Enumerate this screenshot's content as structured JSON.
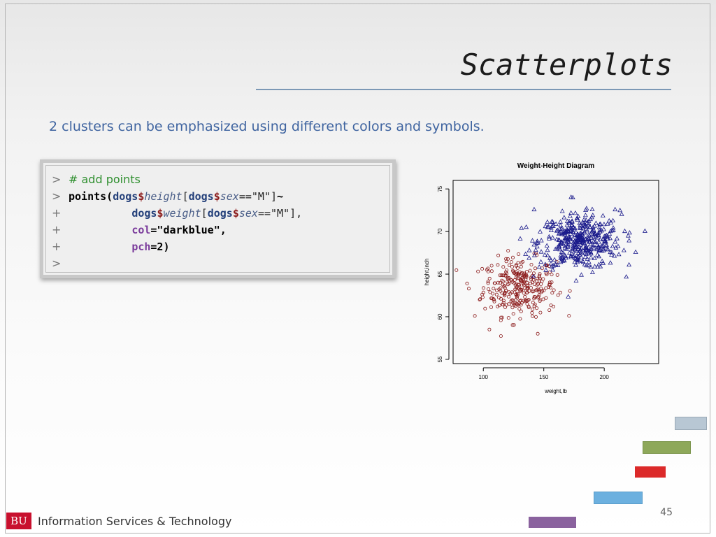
{
  "slide": {
    "title": "Scatterplots",
    "subtitle": "2 clusters can be emphasized using different colors and symbols.",
    "page_number": "45",
    "footer_logo": "BU",
    "footer_text": "Information Services & Technology"
  },
  "code": {
    "prompt_gt": ">",
    "prompt_plus": "+",
    "comment": "# add points",
    "line2": {
      "fn": "points(",
      "obj1": "dogs",
      "dollar": "$",
      "field1": "height",
      "b1": "[",
      "obj2": "dogs",
      "field2": "sex",
      "eq": "==\"M\"]",
      "tilde": "~"
    },
    "line3": {
      "obj1": "dogs",
      "dollar": "$",
      "field1": "weight",
      "b1": "[",
      "obj2": "dogs",
      "field2": "sex",
      "eq": "==\"M\"],"
    },
    "line4": {
      "arg": "col",
      "val": "=\"darkblue\","
    },
    "line5": {
      "arg": "pch",
      "val": "=2)"
    }
  },
  "colors": {
    "title_rule": "#7c98b5",
    "subtitle": "#3f64a0",
    "series_red": "#8b1a1a",
    "series_blue": "#1a1a8b",
    "deco": [
      "#b8c7d4",
      "#8ea85a",
      "#dc2a2a",
      "#6cb0df",
      "#8a629e"
    ]
  },
  "chart_data": {
    "type": "scatter",
    "title": "Weight-Height Diagram",
    "xlabel": "weight,lb",
    "ylabel": "height,inch",
    "xlim": [
      75,
      245
    ],
    "ylim": [
      54.5,
      76
    ],
    "xticks": [
      100,
      150,
      200
    ],
    "yticks": [
      55,
      60,
      65,
      70,
      75
    ],
    "series": [
      {
        "marker": "open-circle",
        "color": "#8b1a1a",
        "center": [
          130,
          63.5
        ],
        "spread": [
          15,
          1.7
        ],
        "count": 300,
        "x": [
          88,
          93,
          97,
          104,
          155,
          158,
          145,
          105,
          119
        ],
        "y": [
          63.3,
          60.1,
          62.0,
          65.3,
          63.8,
          61.2,
          58.0,
          58.5,
          66.5
        ]
      },
      {
        "marker": "open-triangle",
        "color": "#1a1a8b",
        "center": [
          180,
          68.8
        ],
        "spread": [
          17,
          1.6
        ],
        "count": 420,
        "x": [
          174,
          209,
          226,
          147,
          213,
          142,
          158,
          138
        ],
        "y": [
          74.0,
          72.6,
          67.6,
          70.0,
          72.5,
          72.6,
          66.0,
          67.8
        ]
      }
    ]
  }
}
